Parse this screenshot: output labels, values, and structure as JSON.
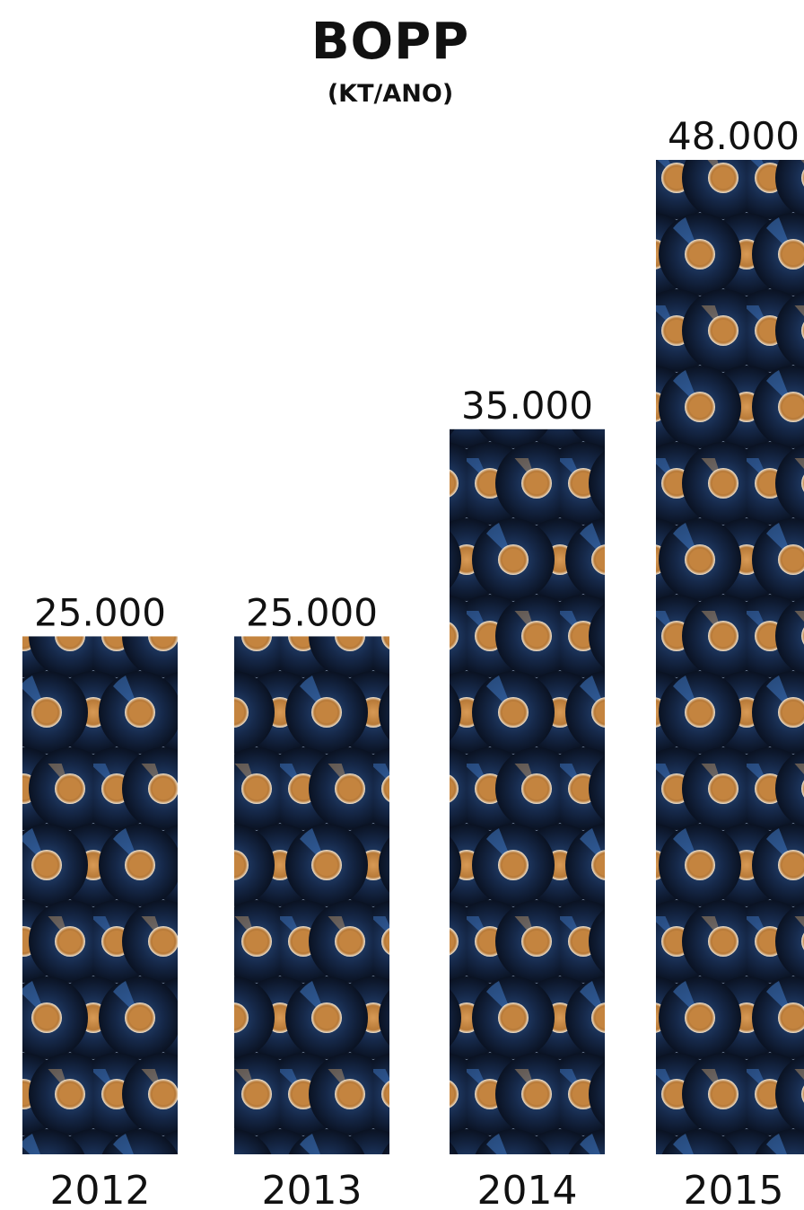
{
  "chart_data": {
    "type": "bar",
    "title": "BOPP",
    "subtitle": "(KT/ANO)",
    "categories": [
      "2012",
      "2013",
      "2014",
      "2015"
    ],
    "values": [
      25000,
      25000,
      35000,
      48000
    ],
    "value_labels": [
      "25.000",
      "25.000",
      "35.000",
      "48.000"
    ],
    "xlabel": "",
    "ylabel": "",
    "ylim": [
      0,
      50000
    ],
    "grid": false,
    "bar_fill": "pattern of rolled dark-blue film reels with orange cores",
    "colors": {
      "bar_background": "#7a8aa3",
      "reel_dark": "#0f1a2e",
      "reel_mid": "#1f3a66",
      "reel_core": "#c98a45",
      "text": "#111111"
    }
  }
}
